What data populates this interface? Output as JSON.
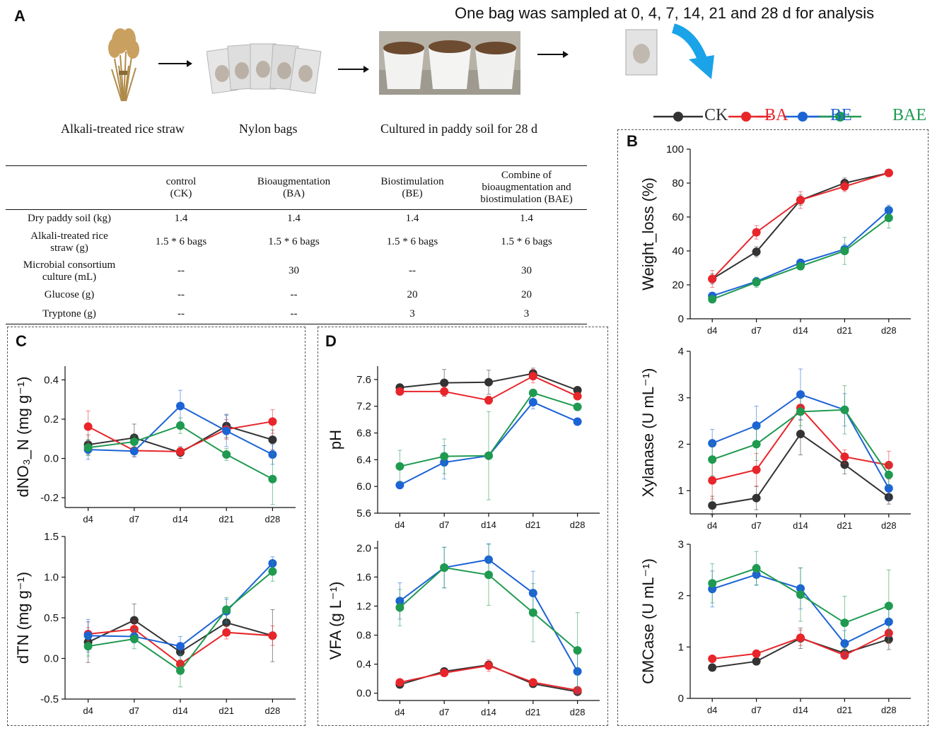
{
  "panelA": {
    "letter": "A",
    "header": "One bag was sampled at 0, 4, 7, 14, 21 and 28 d for analysis",
    "captions": [
      "Alkali-treated rice straw",
      "Nylon bags",
      "Cultured in paddy soil for 28 d"
    ],
    "table": {
      "columns": [
        {
          "line1": "control",
          "line2": "(CK)",
          "line3": ""
        },
        {
          "line1": "Bioaugmentation",
          "line2": "(BA)",
          "line3": ""
        },
        {
          "line1": "Biostimulation",
          "line2": "(BE)",
          "line3": ""
        },
        {
          "line1": "Combine of",
          "line2": "bioaugmentation and",
          "line3": "biostimulation (BAE)"
        }
      ],
      "rows": [
        {
          "label1": "Dry paddy soil (kg)",
          "label2": "",
          "cells": [
            "1.4",
            "1.4",
            "1.4",
            "1.4"
          ]
        },
        {
          "label1": "Alkali-treated rice",
          "label2": "straw (g)",
          "cells": [
            "1.5 * 6 bags",
            "1.5 * 6 bags",
            "1.5 * 6 bags",
            "1.5 * 6 bags"
          ]
        },
        {
          "label1": "Microbial consortium",
          "label2": "culture (mL)",
          "cells": [
            "--",
            "30",
            "--",
            "30"
          ]
        },
        {
          "label1": "Glucose (g)",
          "label2": "",
          "cells": [
            "--",
            "--",
            "20",
            "20"
          ]
        },
        {
          "label1": "Tryptone (g)",
          "label2": "",
          "cells": [
            "--",
            "--",
            "3",
            "3"
          ]
        }
      ]
    }
  },
  "legend": {
    "items": [
      {
        "name": "CK",
        "color": "#333333"
      },
      {
        "name": "BA",
        "color": "#e8252a"
      },
      {
        "name": "BE",
        "color": "#1c63d6"
      },
      {
        "name": "BAE",
        "color": "#1f9a50"
      }
    ]
  },
  "panel_letters": {
    "b": "B",
    "c": "C",
    "d": "D"
  },
  "chart_data": [
    {
      "id": "weight",
      "panel": "B",
      "type": "line",
      "ylabel": "Weight_loss (%)",
      "categories": [
        "d4",
        "d7",
        "d14",
        "d21",
        "d28"
      ],
      "ylim": [
        0,
        100
      ],
      "yticks": [
        0,
        20,
        40,
        60,
        80,
        100
      ],
      "ytick_labels": [
        "0",
        "20",
        "40",
        "60",
        "80",
        "100"
      ],
      "series": [
        {
          "name": "CK",
          "values": [
            23.5,
            39.5,
            70,
            80,
            86
          ],
          "err": [
            3,
            3,
            3,
            3,
            1
          ]
        },
        {
          "name": "BA",
          "values": [
            23.5,
            51,
            70,
            78,
            86
          ],
          "err": [
            5,
            4,
            5,
            3,
            1
          ]
        },
        {
          "name": "BE",
          "values": [
            13.5,
            22,
            33,
            41,
            64
          ],
          "err": [
            2,
            2,
            2,
            3,
            3
          ]
        },
        {
          "name": "BAE",
          "values": [
            11.5,
            21.5,
            31,
            40,
            59.5
          ],
          "err": [
            2,
            3,
            2,
            8,
            6
          ]
        }
      ]
    },
    {
      "id": "xylanase",
      "panel": "B",
      "type": "line",
      "ylabel": "Xylanase (U mL⁻¹)",
      "categories": [
        "d4",
        "d7",
        "d14",
        "d21",
        "d28"
      ],
      "ylim": [
        0.5,
        4
      ],
      "yticks": [
        1,
        2,
        3,
        4
      ],
      "ytick_labels": [
        "1",
        "2",
        "3",
        "4"
      ],
      "series": [
        {
          "name": "CK",
          "values": [
            0.68,
            0.84,
            2.22,
            1.56,
            0.86
          ],
          "err": [
            0.2,
            0.25,
            0.45,
            0.2,
            0.15
          ]
        },
        {
          "name": "BA",
          "values": [
            1.22,
            1.45,
            2.78,
            1.73,
            1.55
          ],
          "err": [
            0.4,
            0.35,
            0.25,
            0.15,
            0.3
          ]
        },
        {
          "name": "BE",
          "values": [
            2.02,
            2.4,
            3.07,
            2.74,
            1.05
          ],
          "err": [
            0.3,
            0.42,
            0.55,
            0.35,
            0.25
          ]
        },
        {
          "name": "BAE",
          "values": [
            1.67,
            2.0,
            2.7,
            2.74,
            1.34
          ],
          "err": [
            0.35,
            0.35,
            0.3,
            0.52,
            0.25
          ]
        }
      ]
    },
    {
      "id": "cmcase",
      "panel": "B",
      "type": "line",
      "ylabel": "CMCase (U mL⁻¹)",
      "categories": [
        "d4",
        "d7",
        "d14",
        "d21",
        "d28"
      ],
      "ylim": [
        0,
        3
      ],
      "yticks": [
        0,
        1,
        2,
        3
      ],
      "ytick_labels": [
        "0",
        "1",
        "2",
        "3"
      ],
      "series": [
        {
          "name": "CK",
          "values": [
            0.6,
            0.72,
            1.17,
            0.88,
            1.15
          ],
          "err": [
            0.05,
            0.05,
            0.2,
            0.1,
            0.2
          ]
        },
        {
          "name": "BA",
          "values": [
            0.77,
            0.87,
            1.18,
            0.84,
            1.27
          ],
          "err": [
            0.05,
            0.05,
            0.15,
            0.08,
            0.2
          ]
        },
        {
          "name": "BE",
          "values": [
            2.13,
            2.41,
            2.14,
            1.07,
            1.49
          ],
          "err": [
            0.35,
            0.2,
            0.4,
            0.25,
            0.3
          ]
        },
        {
          "name": "BAE",
          "values": [
            2.24,
            2.53,
            2.02,
            1.47,
            1.8
          ],
          "err": [
            0.38,
            0.33,
            0.52,
            0.52,
            0.7
          ]
        }
      ]
    },
    {
      "id": "no3",
      "panel": "C",
      "type": "line",
      "ylabel": "dNO₃_N (mg g⁻¹)",
      "categories": [
        "d4",
        "d7",
        "d14",
        "d21",
        "d28"
      ],
      "ylim": [
        -0.25,
        0.47
      ],
      "yticks": [
        -0.2,
        0,
        0.2,
        0.4
      ],
      "ytick_labels": [
        "-0.2",
        "0.0",
        "0.2",
        "0.4"
      ],
      "series": [
        {
          "name": "CK",
          "values": [
            0.07,
            0.105,
            0.03,
            0.165,
            0.095
          ],
          "err": [
            0.05,
            0.07,
            0.03,
            0.06,
            0.05
          ]
        },
        {
          "name": "BA",
          "values": [
            0.162,
            0.04,
            0.035,
            0.148,
            0.188
          ],
          "err": [
            0.08,
            0.03,
            0.02,
            0.05,
            0.06
          ]
        },
        {
          "name": "BE",
          "values": [
            0.045,
            0.037,
            0.267,
            0.14,
            0.02
          ],
          "err": [
            0.05,
            0.03,
            0.08,
            0.08,
            0.05
          ]
        },
        {
          "name": "BAE",
          "values": [
            0.055,
            0.085,
            0.167,
            0.02,
            -0.105
          ],
          "err": [
            0.04,
            0.03,
            0.04,
            0.03,
            0.13
          ]
        }
      ]
    },
    {
      "id": "tn",
      "panel": "C",
      "type": "line",
      "ylabel": "dTN (mg g⁻¹)",
      "categories": [
        "d4",
        "d7",
        "d14",
        "d21",
        "d28"
      ],
      "ylim": [
        -0.5,
        1.5
      ],
      "yticks": [
        -0.5,
        0,
        0.5,
        1,
        1.5
      ],
      "ytick_labels": [
        "-0.5",
        "0.0",
        "0.5",
        "1.0",
        "1.5"
      ],
      "series": [
        {
          "name": "CK",
          "values": [
            0.2,
            0.47,
            0.08,
            0.44,
            0.28
          ],
          "err": [
            0.25,
            0.2,
            0.1,
            0.1,
            0.32
          ]
        },
        {
          "name": "BA",
          "values": [
            0.3,
            0.36,
            -0.07,
            0.32,
            0.28
          ],
          "err": [
            0.08,
            0.1,
            0.05,
            0.08,
            0.12
          ]
        },
        {
          "name": "BE",
          "values": [
            0.28,
            0.27,
            0.15,
            0.58,
            1.17
          ],
          "err": [
            0.2,
            0.08,
            0.12,
            0.15,
            0.08
          ]
        },
        {
          "name": "BAE",
          "values": [
            0.15,
            0.24,
            -0.15,
            0.6,
            1.07
          ],
          "err": [
            0.12,
            0.12,
            0.2,
            0.15,
            0.12
          ]
        }
      ]
    },
    {
      "id": "ph",
      "panel": "D",
      "type": "line",
      "ylabel": "pH",
      "categories": [
        "d4",
        "d7",
        "d14",
        "d21",
        "d28"
      ],
      "ylim": [
        5.6,
        7.8
      ],
      "yticks": [
        5.6,
        6.0,
        6.4,
        6.8,
        7.2,
        7.6
      ],
      "ytick_labels": [
        "5.6",
        "6.0",
        "6.4",
        "6.8",
        "7.2",
        "7.6"
      ],
      "series": [
        {
          "name": "CK",
          "values": [
            7.48,
            7.55,
            7.56,
            7.69,
            7.44
          ],
          "err": [
            0.03,
            0.2,
            0.18,
            0.08,
            0.04
          ]
        },
        {
          "name": "BA",
          "values": [
            7.42,
            7.42,
            7.29,
            7.65,
            7.35
          ],
          "err": [
            0.03,
            0.07,
            0.06,
            0.1,
            0.05
          ]
        },
        {
          "name": "BE",
          "values": [
            6.02,
            6.36,
            6.46,
            7.26,
            6.97
          ],
          "err": [
            0.05,
            0.25,
            0.05,
            0.1,
            0.05
          ]
        },
        {
          "name": "BAE",
          "values": [
            6.3,
            6.45,
            6.46,
            7.4,
            7.19
          ],
          "err": [
            0.24,
            0.26,
            0.66,
            0.05,
            0.05
          ]
        }
      ]
    },
    {
      "id": "vfa",
      "panel": "D",
      "type": "line",
      "ylabel": "VFA (g L⁻¹)",
      "categories": [
        "d4",
        "d7",
        "d14",
        "d21",
        "d28"
      ],
      "ylim": [
        -0.1,
        2.1
      ],
      "yticks": [
        0,
        0.4,
        0.8,
        1.2,
        1.6,
        2.0
      ],
      "ytick_labels": [
        "0.0",
        "0.4",
        "0.8",
        "1.2",
        "1.6",
        "2.0"
      ],
      "series": [
        {
          "name": "CK",
          "values": [
            0.12,
            0.3,
            0.39,
            0.13,
            0.02
          ],
          "err": [
            0.02,
            0.03,
            0.05,
            0.02,
            0.02
          ]
        },
        {
          "name": "BA",
          "values": [
            0.15,
            0.28,
            0.38,
            0.15,
            0.04
          ],
          "err": [
            0.02,
            0.03,
            0.08,
            0.03,
            0.02
          ]
        },
        {
          "name": "BE",
          "values": [
            1.27,
            1.73,
            1.84,
            1.38,
            0.3
          ],
          "err": [
            0.25,
            0.28,
            0.22,
            0.3,
            0.3
          ]
        },
        {
          "name": "BAE",
          "values": [
            1.18,
            1.73,
            1.63,
            1.11,
            0.59
          ],
          "err": [
            0.25,
            0.28,
            0.42,
            0.4,
            0.52
          ]
        }
      ]
    }
  ]
}
